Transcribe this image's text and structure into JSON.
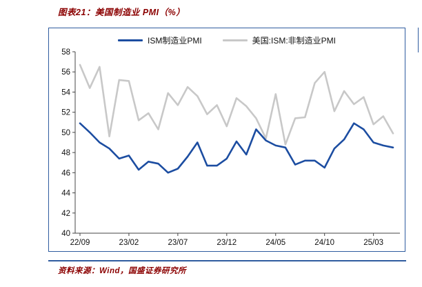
{
  "page": {
    "source": "资料来源：Wind，国盛证券研究所"
  },
  "colors": {
    "accent_red": "#8B0000",
    "frame_navy": "#2E5B9F",
    "axis_color": "#444444",
    "manufacturing_blue": "#1C4DA1",
    "non_manufacturing_gray": "#C8C8C8"
  },
  "chart_data": {
    "type": "line",
    "title": "图表21：美国制造业 PMI（%）",
    "grid": false,
    "legend_position": "top",
    "ylim": [
      40,
      58
    ],
    "ytick_step": 2,
    "xtick_labels": [
      "22/09",
      "23/02",
      "23/07",
      "23/12",
      "24/05",
      "24/10",
      "25/03"
    ],
    "x": [
      "22/09",
      "22/10",
      "22/11",
      "22/12",
      "23/01",
      "23/02",
      "23/03",
      "23/04",
      "23/05",
      "23/06",
      "23/07",
      "23/08",
      "23/09",
      "23/10",
      "23/11",
      "23/12",
      "24/01",
      "24/02",
      "24/03",
      "24/04",
      "24/05",
      "24/06",
      "24/07",
      "24/08",
      "24/09",
      "24/10",
      "24/11",
      "24/12",
      "25/01",
      "25/02",
      "25/03",
      "25/04",
      "25/05"
    ],
    "series": [
      {
        "name": "ISM制造业PMI",
        "color": "#1C4DA1",
        "values": [
          50.9,
          50.0,
          49.0,
          48.4,
          47.4,
          47.7,
          46.3,
          47.1,
          46.9,
          46.0,
          46.4,
          47.6,
          49.0,
          46.7,
          46.7,
          47.4,
          49.1,
          47.8,
          50.3,
          49.2,
          48.7,
          48.5,
          46.8,
          47.2,
          47.2,
          46.5,
          48.4,
          49.3,
          50.9,
          50.3,
          49.0,
          48.7,
          48.5
        ]
      },
      {
        "name": "美国:ISM:非制造业PMI",
        "color": "#C8C8C8",
        "values": [
          56.7,
          54.4,
          56.5,
          49.6,
          55.2,
          55.1,
          51.2,
          51.9,
          50.3,
          53.9,
          52.7,
          54.5,
          53.6,
          51.8,
          52.7,
          50.6,
          53.4,
          52.6,
          51.4,
          49.4,
          53.8,
          48.8,
          51.4,
          51.5,
          54.9,
          56.0,
          52.1,
          54.1,
          52.8,
          53.5,
          50.8,
          51.6,
          49.9
        ]
      }
    ]
  }
}
